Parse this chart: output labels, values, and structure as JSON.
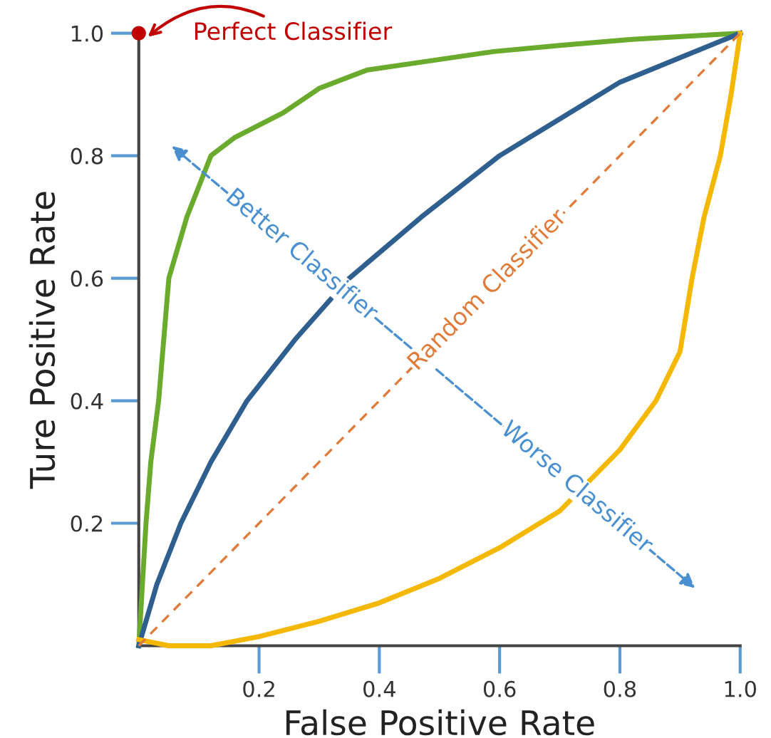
{
  "chart_data": {
    "type": "line",
    "xlabel": "False Positive Rate",
    "ylabel": "Ture Positive Rate",
    "xlim": [
      0,
      1.0
    ],
    "ylim": [
      0,
      1.0
    ],
    "xticks": [
      0.2,
      0.4,
      0.6,
      {
        "value": 1.0,
        "label": "1.0"
      },
      0.8
    ],
    "yticks": [
      0.2,
      0.4,
      0.6,
      0.8,
      {
        "value": 1.0,
        "label": "1.0"
      }
    ],
    "grid": false,
    "legend": false,
    "marker": "none",
    "series": [
      {
        "color": "#6aab2e",
        "x": [
          0,
          0.012,
          0.02,
          0.033,
          0.05,
          0.08,
          0.12,
          0.16,
          0.24,
          0.3,
          0.38,
          0.45,
          0.59,
          0.7,
          0.82,
          1.0
        ],
        "values": [
          0,
          0.2,
          0.3,
          0.4,
          0.6,
          0.7,
          0.8,
          0.83,
          0.87,
          0.91,
          0.94,
          0.95,
          0.97,
          0.98,
          0.99,
          1.0
        ]
      },
      {
        "color": "#2e5f8f",
        "x": [
          0,
          0.03,
          0.07,
          0.12,
          0.18,
          0.26,
          0.35,
          0.47,
          0.6,
          0.7,
          0.8,
          0.9,
          1.0
        ],
        "values": [
          0,
          0.1,
          0.2,
          0.3,
          0.4,
          0.5,
          0.6,
          0.7,
          0.8,
          0.86,
          0.92,
          0.96,
          1.0
        ]
      },
      {
        "color": "#f5b800",
        "x": [
          0,
          0.05,
          0.12,
          0.2,
          0.3,
          0.4,
          0.5,
          0.6,
          0.7,
          0.75,
          0.8,
          0.86,
          0.9,
          0.92,
          0.94,
          0.967,
          0.985,
          1.0
        ],
        "values": [
          0.01,
          0,
          0,
          0.015,
          0.04,
          0.07,
          0.11,
          0.16,
          0.22,
          0.27,
          0.32,
          0.4,
          0.48,
          0.6,
          0.7,
          0.8,
          0.9,
          1.0
        ]
      },
      {
        "name": "Random Classifier",
        "color": "#e07b39",
        "line_style": "dashed",
        "x": [
          0,
          1.0
        ],
        "values": [
          0,
          1.0
        ]
      },
      {
        "type": "scatter",
        "marker": "circle",
        "color": "#c00000",
        "x": [
          0
        ],
        "values": [
          1.0
        ]
      }
    ],
    "annotations": [
      {
        "text": "Perfect Classifier",
        "x": 0,
        "y": 1.0
      },
      "Better Classifier",
      "Worse Classifier"
    ]
  }
}
